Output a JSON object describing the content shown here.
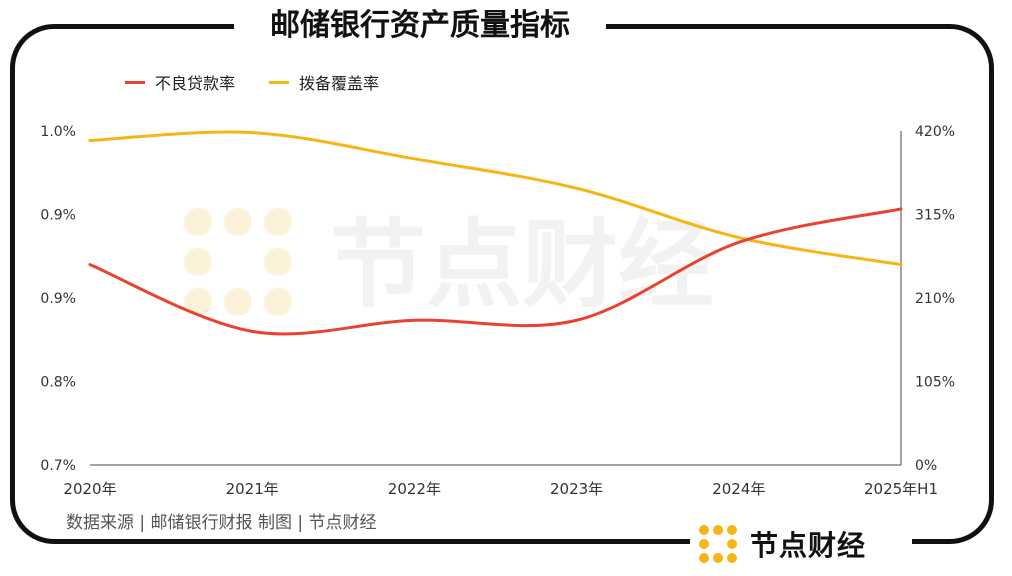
{
  "title": "邮储银行资产质量指标",
  "legend": [
    {
      "label": "不良贷款率",
      "color": "#e8432f"
    },
    {
      "label": "拨备覆盖率",
      "color": "#f6b513"
    }
  ],
  "source": "数据来源 | 邮储银行财报   制图 | 节点财经",
  "brand": "节点财经",
  "watermark": "节点财经",
  "colors": {
    "accent": "#f6b513",
    "npl": "#e8432f",
    "frame": "#111111"
  },
  "chart_data": {
    "type": "line",
    "categories": [
      "2020年",
      "2021年",
      "2022年",
      "2023年",
      "2024年",
      "2025年H1"
    ],
    "series": [
      {
        "name": "不良贷款率",
        "axis": "left",
        "values": [
          0.88,
          0.82,
          0.83,
          0.83,
          0.9,
          0.93
        ]
      },
      {
        "name": "拨备覆盖率",
        "axis": "right",
        "values": [
          408,
          418,
          385,
          348,
          286,
          252
        ]
      }
    ],
    "y_left": {
      "ylim": [
        0.7,
        1.0
      ],
      "ticks": [
        0.7,
        0.775,
        0.85,
        0.925,
        1.0
      ],
      "tick_labels": [
        "0.7%",
        "0.8%",
        "0.9%",
        "0.9%",
        "1.0%"
      ]
    },
    "y_right": {
      "ylim": [
        0,
        420
      ],
      "ticks": [
        0,
        105,
        210,
        315,
        420
      ],
      "tick_labels": [
        "0%",
        "105%",
        "210%",
        "315%",
        "420%"
      ]
    },
    "grid": false,
    "legend_position": "top-left"
  }
}
